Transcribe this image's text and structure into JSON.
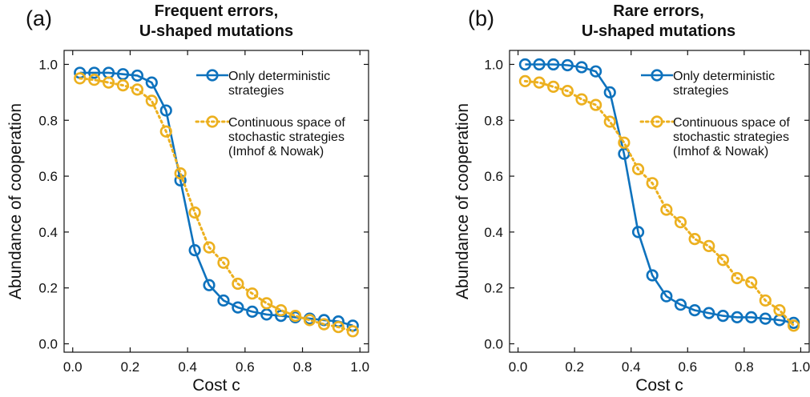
{
  "chart_data": [
    {
      "type": "line",
      "panel_label": "(a)",
      "title_lines": [
        "Frequent errors,",
        "U-shaped mutations"
      ],
      "xlabel": "Cost c",
      "ylabel": "Abundance of cooperation",
      "xlim": [
        -0.03,
        1.03
      ],
      "ylim": [
        -0.03,
        1.05
      ],
      "xticks": [
        0.0,
        0.2,
        0.4,
        0.6,
        0.8,
        1.0
      ],
      "xtick_labels": [
        "0.0",
        "0.2",
        "0.4",
        "0.6",
        "0.8",
        "1.0"
      ],
      "yticks": [
        0.0,
        0.2,
        0.4,
        0.6,
        0.8,
        1.0
      ],
      "ytick_labels": [
        "0.0",
        "0.2",
        "0.4",
        "0.6",
        "0.8",
        "1.0"
      ],
      "grid": false,
      "legend_position": "top-right",
      "series": [
        {
          "name_lines": [
            "Only deterministic",
            "strategies"
          ],
          "color": "#0e72bd",
          "line_style": "solid",
          "x": [
            0.025,
            0.075,
            0.125,
            0.175,
            0.225,
            0.275,
            0.325,
            0.375,
            0.425,
            0.475,
            0.525,
            0.575,
            0.625,
            0.675,
            0.725,
            0.775,
            0.825,
            0.875,
            0.925,
            0.975
          ],
          "y": [
            0.97,
            0.97,
            0.97,
            0.965,
            0.96,
            0.935,
            0.835,
            0.585,
            0.335,
            0.21,
            0.155,
            0.13,
            0.115,
            0.105,
            0.1,
            0.095,
            0.09,
            0.085,
            0.08,
            0.065
          ]
        },
        {
          "name_lines": [
            "Continuous space of",
            "stochastic strategies",
            "(Imhof & Nowak)"
          ],
          "color": "#ecb01f",
          "line_style": "dotted",
          "x": [
            0.025,
            0.075,
            0.125,
            0.175,
            0.225,
            0.275,
            0.325,
            0.375,
            0.425,
            0.475,
            0.525,
            0.575,
            0.625,
            0.675,
            0.725,
            0.775,
            0.825,
            0.875,
            0.925,
            0.975
          ],
          "y": [
            0.95,
            0.945,
            0.935,
            0.925,
            0.91,
            0.87,
            0.76,
            0.61,
            0.47,
            0.345,
            0.29,
            0.215,
            0.18,
            0.145,
            0.12,
            0.1,
            0.085,
            0.07,
            0.06,
            0.045
          ]
        }
      ]
    },
    {
      "type": "line",
      "panel_label": "(b)",
      "title_lines": [
        "Rare errors,",
        "U-shaped mutations"
      ],
      "xlabel": "Cost c",
      "ylabel": "Abundance of cooperation",
      "xlim": [
        -0.03,
        1.03
      ],
      "ylim": [
        -0.03,
        1.05
      ],
      "xticks": [
        0.0,
        0.2,
        0.4,
        0.6,
        0.8,
        1.0
      ],
      "xtick_labels": [
        "0.0",
        "0.2",
        "0.4",
        "0.6",
        "0.8",
        "1.0"
      ],
      "yticks": [
        0.0,
        0.2,
        0.4,
        0.6,
        0.8,
        1.0
      ],
      "ytick_labels": [
        "0.0",
        "0.2",
        "0.4",
        "0.6",
        "0.8",
        "1.0"
      ],
      "grid": false,
      "legend_position": "top-right",
      "series": [
        {
          "name_lines": [
            "Only deterministic",
            "strategies"
          ],
          "color": "#0e72bd",
          "line_style": "solid",
          "x": [
            0.025,
            0.075,
            0.125,
            0.175,
            0.225,
            0.275,
            0.325,
            0.375,
            0.425,
            0.475,
            0.525,
            0.575,
            0.625,
            0.675,
            0.725,
            0.775,
            0.825,
            0.875,
            0.925,
            0.975
          ],
          "y": [
            1.0,
            1.0,
            1.0,
            0.997,
            0.99,
            0.975,
            0.9,
            0.68,
            0.4,
            0.245,
            0.17,
            0.14,
            0.12,
            0.11,
            0.1,
            0.095,
            0.095,
            0.09,
            0.085,
            0.075
          ]
        },
        {
          "name_lines": [
            "Continuous space of",
            "stochastic strategies",
            "(Imhof & Nowak)"
          ],
          "color": "#ecb01f",
          "line_style": "dotted",
          "x": [
            0.025,
            0.075,
            0.125,
            0.175,
            0.225,
            0.275,
            0.325,
            0.375,
            0.425,
            0.475,
            0.525,
            0.575,
            0.625,
            0.675,
            0.725,
            0.775,
            0.825,
            0.875,
            0.925,
            0.975
          ],
          "y": [
            0.94,
            0.935,
            0.92,
            0.905,
            0.875,
            0.855,
            0.795,
            0.72,
            0.625,
            0.575,
            0.48,
            0.435,
            0.375,
            0.35,
            0.3,
            0.235,
            0.22,
            0.155,
            0.12,
            0.065
          ]
        }
      ]
    }
  ]
}
